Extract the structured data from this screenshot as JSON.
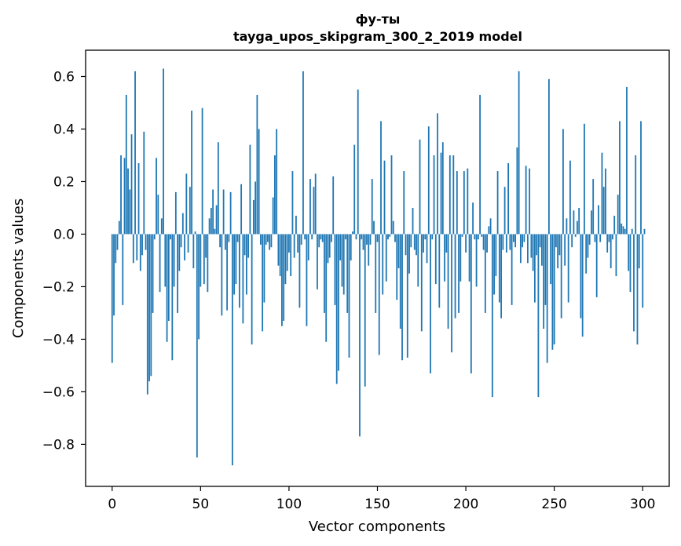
{
  "chart_data": {
    "type": "bar",
    "title": "фу-ты",
    "subtitle": "tayga_upos_skipgram_300_2_2019 model",
    "xlabel": "Vector components",
    "ylabel": "Components values",
    "xlim": [
      -15,
      315
    ],
    "ylim": [
      -0.96,
      0.7
    ],
    "xticks": [
      0,
      50,
      100,
      150,
      200,
      250,
      300
    ],
    "yticks": [
      -0.8,
      -0.6,
      -0.4,
      -0.2,
      0.0,
      0.2,
      0.4,
      0.6
    ],
    "ytick_labels": [
      "−0.8",
      "−0.6",
      "−0.4",
      "−0.2",
      "0.0",
      "0.2",
      "0.4",
      "0.6"
    ],
    "xtick_labels": [
      "0",
      "50",
      "100",
      "150",
      "200",
      "250",
      "300"
    ],
    "bar_color": "#1f77b4",
    "grid": false,
    "values": [
      -0.49,
      -0.31,
      -0.11,
      -0.06,
      0.05,
      0.3,
      -0.27,
      0.29,
      0.53,
      0.25,
      0.17,
      0.38,
      -0.11,
      0.62,
      -0.1,
      0.27,
      -0.14,
      -0.08,
      0.39,
      -0.06,
      -0.61,
      -0.56,
      -0.54,
      -0.3,
      -0.02,
      0.29,
      0.15,
      -0.22,
      0.06,
      0.63,
      -0.2,
      -0.41,
      -0.33,
      -0.02,
      -0.48,
      -0.2,
      0.16,
      -0.3,
      -0.14,
      -0.05,
      0.08,
      -0.1,
      0.23,
      -0.07,
      0.18,
      0.47,
      -0.13,
      0.01,
      -0.85,
      -0.4,
      -0.2,
      0.48,
      -0.19,
      -0.09,
      -0.22,
      0.06,
      0.1,
      0.17,
      0.02,
      0.11,
      0.35,
      -0.05,
      -0.31,
      0.17,
      -0.06,
      -0.29,
      -0.03,
      0.16,
      -0.88,
      -0.23,
      -0.19,
      -0.03,
      -0.28,
      0.19,
      -0.34,
      -0.08,
      -0.23,
      -0.09,
      0.34,
      -0.42,
      0.13,
      0.2,
      0.53,
      0.4,
      -0.04,
      -0.37,
      -0.26,
      -0.04,
      -0.03,
      -0.06,
      -0.05,
      0.14,
      0.3,
      0.4,
      -0.12,
      -0.16,
      -0.35,
      -0.33,
      -0.19,
      -0.14,
      -0.07,
      -0.16,
      0.24,
      -0.09,
      0.07,
      -0.07,
      -0.28,
      -0.04,
      0.62,
      -0.02,
      -0.35,
      -0.1,
      0.21,
      -0.02,
      0.18,
      0.23,
      -0.21,
      -0.05,
      -0.02,
      -0.03,
      -0.3,
      -0.41,
      -0.11,
      -0.09,
      -0.03,
      0.22,
      -0.27,
      -0.57,
      -0.52,
      -0.1,
      -0.2,
      -0.23,
      -0.02,
      -0.3,
      -0.47,
      -0.1,
      0.01,
      0.34,
      -0.02,
      0.55,
      -0.77,
      -0.02,
      -0.06,
      -0.58,
      -0.04,
      -0.12,
      -0.04,
      0.21,
      0.05,
      -0.3,
      -0.03,
      -0.46,
      0.43,
      -0.23,
      0.28,
      -0.18,
      -0.02,
      -0.01,
      0.3,
      0.05,
      -0.03,
      -0.25,
      -0.13,
      -0.36,
      -0.48,
      0.24,
      -0.08,
      -0.47,
      -0.15,
      -0.05,
      0.1,
      -0.06,
      -0.08,
      -0.2,
      0.36,
      -0.37,
      -0.07,
      -0.02,
      -0.11,
      0.41,
      -0.53,
      -0.02,
      0.3,
      -0.19,
      0.46,
      -0.28,
      0.31,
      0.35,
      -0.18,
      -0.07,
      -0.36,
      0.3,
      -0.45,
      0.3,
      -0.32,
      0.24,
      -0.3,
      -0.18,
      -0.01,
      0.24,
      -0.07,
      0.25,
      -0.18,
      -0.53,
      0.12,
      -0.02,
      -0.2,
      -0.02,
      0.53,
      -0.01,
      -0.06,
      -0.3,
      -0.07,
      0.03,
      0.06,
      -0.62,
      -0.23,
      -0.16,
      0.24,
      -0.26,
      -0.32,
      -0.06,
      0.18,
      -0.07,
      0.27,
      -0.06,
      -0.27,
      -0.03,
      -0.05,
      0.33,
      0.62,
      -0.11,
      -0.05,
      -0.03,
      0.26,
      -0.11,
      0.25,
      -0.09,
      -0.14,
      -0.26,
      -0.08,
      -0.62,
      -0.05,
      -0.12,
      -0.36,
      -0.27,
      -0.49,
      0.59,
      -0.19,
      -0.44,
      -0.42,
      -0.05,
      -0.13,
      -0.08,
      -0.32,
      0.4,
      -0.12,
      0.06,
      -0.26,
      0.28,
      -0.05,
      0.09,
      -0.01,
      0.05,
      0.1,
      -0.32,
      -0.39,
      0.42,
      -0.15,
      -0.09,
      -0.04,
      0.09,
      0.21,
      -0.03,
      -0.24,
      0.11,
      -0.03,
      0.31,
      0.18,
      0.25,
      -0.07,
      -0.03,
      -0.13,
      -0.02,
      0.07,
      -0.16,
      0.15,
      0.43,
      0.04,
      0.03,
      0.02,
      0.56,
      -0.14,
      -0.22,
      0.02,
      -0.37,
      0.3,
      -0.42,
      -0.13,
      0.43,
      -0.28,
      0.02
    ]
  }
}
